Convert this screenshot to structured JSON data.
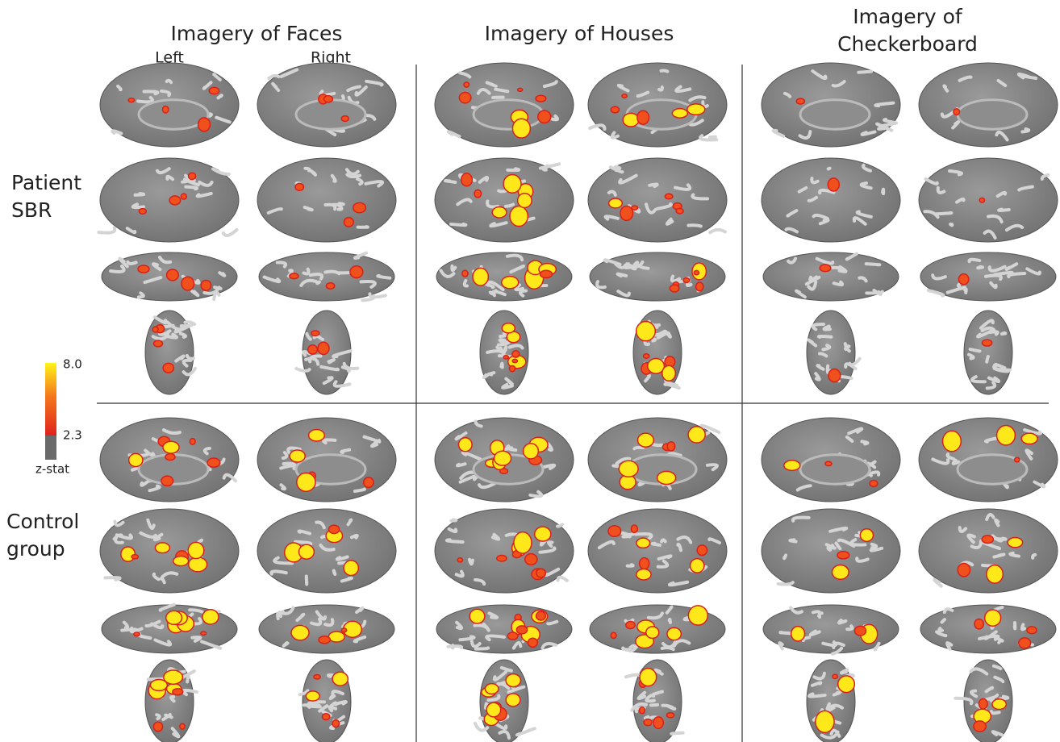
{
  "columns": [
    {
      "title": "Imagery of Faces",
      "hemispheres": [
        "Left",
        "Right"
      ]
    },
    {
      "title": "Imagery of Houses"
    },
    {
      "title_lines": [
        "Imagery of",
        "Checkerboard"
      ]
    }
  ],
  "rows": [
    {
      "label_lines": [
        "Patient",
        "SBR"
      ]
    },
    {
      "label_lines": [
        "Control",
        "group"
      ]
    }
  ],
  "colorbar": {
    "max_label": "8.0",
    "min_label": "2.3",
    "title": "z-stat"
  }
}
